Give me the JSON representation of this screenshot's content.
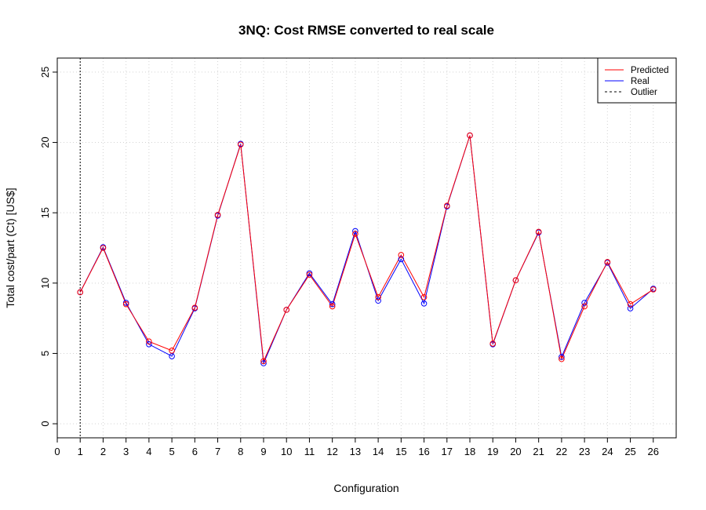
{
  "chart_data": {
    "type": "line",
    "title": "3NQ: Cost RMSE converted to real scale",
    "xlabel": "Configuration",
    "ylabel": "Total cost/part (Ct) [US$]",
    "xlim": [
      0,
      27
    ],
    "ylim": [
      -1,
      26
    ],
    "xticks": [
      0,
      1,
      2,
      3,
      4,
      5,
      6,
      7,
      8,
      9,
      10,
      11,
      12,
      13,
      14,
      15,
      16,
      17,
      18,
      19,
      20,
      21,
      22,
      23,
      24,
      25,
      26
    ],
    "yticks": [
      0,
      5,
      10,
      15,
      20,
      25
    ],
    "grid": true,
    "legend_position": "top-right",
    "x": [
      1,
      2,
      3,
      4,
      5,
      6,
      7,
      8,
      9,
      10,
      11,
      12,
      13,
      14,
      15,
      16,
      17,
      18,
      19,
      20,
      21,
      22,
      23,
      24,
      25,
      26
    ],
    "series": [
      {
        "name": "Predicted",
        "color": "#ff0000",
        "values": [
          9.35,
          12.5,
          8.5,
          5.85,
          5.2,
          8.25,
          14.85,
          19.85,
          4.45,
          8.1,
          10.6,
          8.35,
          13.5,
          9.0,
          12.0,
          9.0,
          15.5,
          20.5,
          5.7,
          10.2,
          13.65,
          4.6,
          8.35,
          11.5,
          8.5,
          9.55
        ]
      },
      {
        "name": "Real",
        "color": "#0000ff",
        "values": [
          9.35,
          12.55,
          8.6,
          5.65,
          4.8,
          8.2,
          14.8,
          19.9,
          4.3,
          8.1,
          10.7,
          8.5,
          13.7,
          8.75,
          11.7,
          8.55,
          15.45,
          20.5,
          5.65,
          10.2,
          13.6,
          4.75,
          8.6,
          11.45,
          8.2,
          9.6
        ]
      }
    ],
    "outlier": {
      "name": "Outlier",
      "x": 1,
      "color": "#000000"
    }
  }
}
